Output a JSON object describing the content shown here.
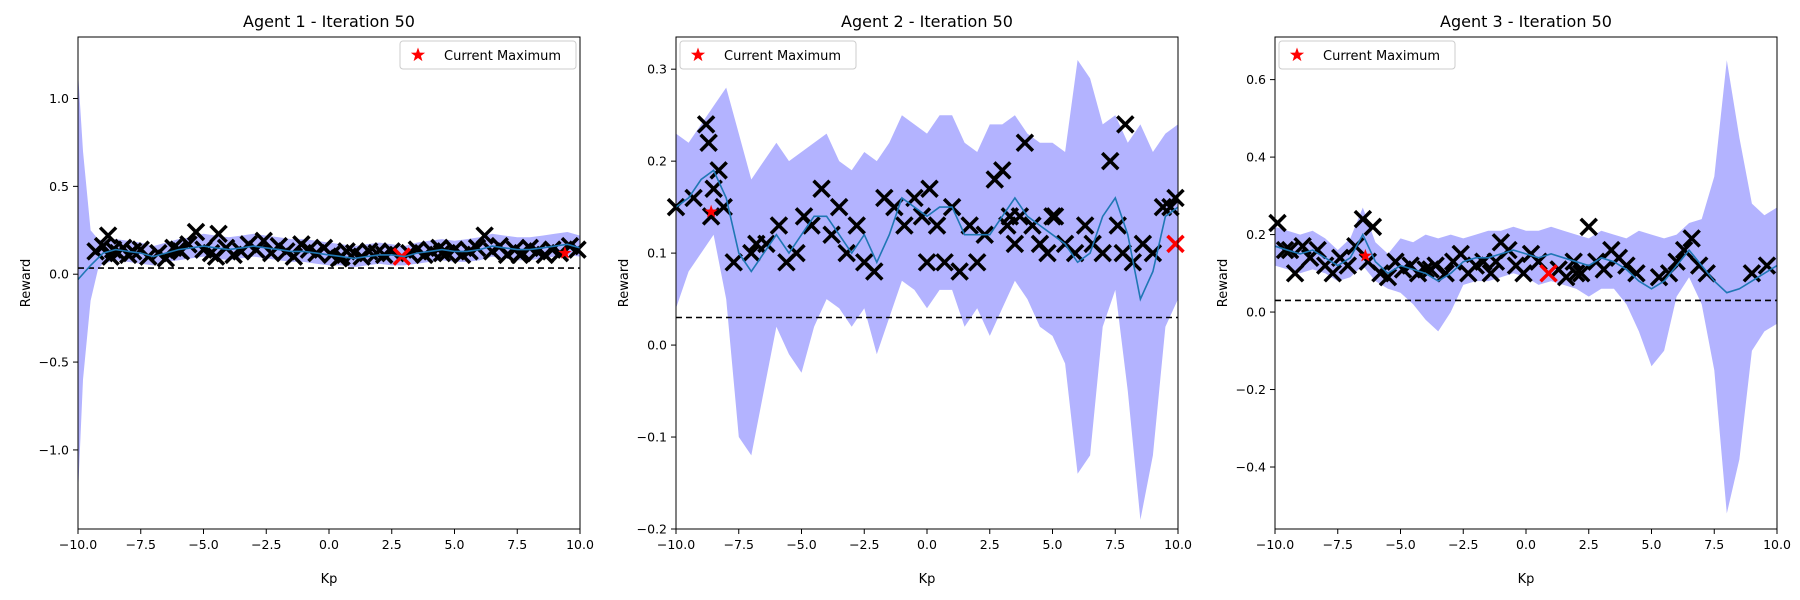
{
  "colors": {
    "band": "#b3b3ff",
    "mean_line": "#1f77b4",
    "sample_marker": "#000000",
    "best_marker": "#ff0000",
    "star": "#ff0000",
    "threshold": "#000000",
    "frame": "#000000"
  },
  "chart_data": [
    {
      "type": "line",
      "title": "Agent 1 - Iteration 50",
      "xlabel": "Kp",
      "ylabel": "Reward",
      "xlim": [
        -10,
        10
      ],
      "ylim": [
        -1.45,
        1.35
      ],
      "xticks": [
        -10,
        -7.5,
        -5,
        -2.5,
        0,
        2.5,
        5,
        7.5,
        10
      ],
      "xtick_labels": [
        "−10.0",
        "−7.5",
        "−5.0",
        "−2.5",
        "0.0",
        "2.5",
        "5.0",
        "7.5",
        "10.0"
      ],
      "yticks": [
        -1.0,
        -0.5,
        0.0,
        0.5,
        1.0
      ],
      "ytick_labels": [
        "−1.0",
        "−0.5",
        "0.0",
        "0.5",
        "1.0"
      ],
      "legend": {
        "label": "Current Maximum",
        "position": "top-right"
      },
      "threshold": 0.035,
      "mean": {
        "x": [
          -10,
          -9.5,
          -9,
          -8.5,
          -8,
          -7.5,
          -7,
          -6.5,
          -6,
          -5.5,
          -5,
          -4.5,
          -4,
          -3.5,
          -3,
          -2.5,
          -2,
          -1.5,
          -1,
          -0.5,
          0,
          0.5,
          1,
          1.5,
          2,
          2.5,
          3,
          3.5,
          4,
          4.5,
          5,
          5.5,
          6,
          6.5,
          7,
          7.5,
          8,
          8.5,
          9,
          9.5,
          10
        ],
        "y": [
          -0.03,
          0.05,
          0.12,
          0.14,
          0.13,
          0.12,
          0.1,
          0.12,
          0.14,
          0.15,
          0.16,
          0.15,
          0.14,
          0.15,
          0.16,
          0.15,
          0.14,
          0.13,
          0.13,
          0.12,
          0.11,
          0.1,
          0.09,
          0.1,
          0.11,
          0.11,
          0.1,
          0.12,
          0.13,
          0.14,
          0.13,
          0.13,
          0.14,
          0.16,
          0.15,
          0.14,
          0.14,
          0.15,
          0.16,
          0.17,
          0.15
        ]
      },
      "band": {
        "x": [
          -10,
          -9.8,
          -9.5,
          -9.2,
          -9,
          -8.5,
          -8,
          -7.5,
          -7,
          -6.5,
          -6,
          -5.5,
          -5,
          -4.5,
          -4,
          -3.5,
          -3,
          -2.5,
          -2,
          -1.5,
          -1,
          -0.5,
          0,
          0.5,
          1,
          1.5,
          2,
          2.5,
          3,
          3.5,
          4,
          4.5,
          5,
          5.5,
          6,
          6.5,
          7,
          7.5,
          8,
          8.5,
          9,
          9.5,
          10
        ],
        "lower": [
          -1.25,
          -0.6,
          -0.15,
          0.03,
          0.06,
          0.08,
          0.07,
          0.06,
          0.05,
          0.07,
          0.08,
          0.09,
          0.1,
          0.09,
          0.08,
          0.09,
          0.1,
          0.09,
          0.08,
          0.07,
          0.07,
          0.06,
          0.05,
          0.05,
          0.04,
          0.05,
          0.06,
          0.05,
          0.05,
          0.06,
          0.07,
          0.08,
          0.07,
          0.07,
          0.08,
          0.1,
          0.09,
          0.08,
          0.08,
          0.09,
          0.1,
          0.11,
          0.1
        ],
        "upper": [
          1.15,
          0.7,
          0.25,
          0.2,
          0.19,
          0.2,
          0.19,
          0.18,
          0.16,
          0.18,
          0.2,
          0.21,
          0.23,
          0.22,
          0.21,
          0.22,
          0.23,
          0.22,
          0.21,
          0.2,
          0.2,
          0.19,
          0.18,
          0.17,
          0.16,
          0.17,
          0.18,
          0.17,
          0.16,
          0.18,
          0.19,
          0.2,
          0.19,
          0.2,
          0.21,
          0.23,
          0.22,
          0.21,
          0.21,
          0.22,
          0.23,
          0.24,
          0.22
        ]
      },
      "samples": {
        "x": [
          -9.3,
          -9.0,
          -8.8,
          -8.6,
          -8.4,
          -8.2,
          -8.0,
          -7.8,
          -7.5,
          -7.2,
          -6.8,
          -6.5,
          -6.2,
          -5.9,
          -5.6,
          -5.3,
          -5.0,
          -4.7,
          -4.4,
          -4.1,
          -3.8,
          -3.5,
          -3.2,
          -2.9,
          -2.6,
          -2.3,
          -2.0,
          -1.7,
          -1.4,
          -1.1,
          -0.8,
          -0.5,
          -0.2,
          0.1,
          0.4,
          0.7,
          1.0,
          1.3,
          1.6,
          1.9,
          2.2,
          2.5,
          3.2,
          3.5,
          3.8,
          4.1,
          4.4,
          4.7,
          5.0,
          5.3,
          5.6,
          5.9,
          6.2,
          6.5,
          6.8,
          7.1,
          7.4,
          7.7,
          8.0,
          8.3,
          8.6,
          8.9,
          9.2,
          9.6,
          9.9,
          -8.7,
          -6.0,
          -4.5,
          0.5,
          4.5,
          7.6
        ],
        "y": [
          0.13,
          0.16,
          0.22,
          0.14,
          0.12,
          0.15,
          0.11,
          0.13,
          0.14,
          0.1,
          0.12,
          0.09,
          0.15,
          0.13,
          0.17,
          0.24,
          0.14,
          0.12,
          0.23,
          0.15,
          0.11,
          0.13,
          0.17,
          0.14,
          0.19,
          0.12,
          0.16,
          0.13,
          0.1,
          0.17,
          0.14,
          0.12,
          0.15,
          0.11,
          0.09,
          0.13,
          0.12,
          0.1,
          0.13,
          0.12,
          0.11,
          0.13,
          0.12,
          0.14,
          0.11,
          0.13,
          0.15,
          0.12,
          0.14,
          0.11,
          0.13,
          0.15,
          0.22,
          0.13,
          0.16,
          0.11,
          0.14,
          0.12,
          0.15,
          0.13,
          0.11,
          0.14,
          0.12,
          0.16,
          0.14,
          0.1,
          0.14,
          0.1,
          0.1,
          0.12,
          0.11
        ]
      },
      "best_samples": {
        "x": [
          2.9
        ],
        "y": [
          0.1
        ]
      },
      "current_max": {
        "x": 9.4,
        "y": 0.12
      }
    },
    {
      "type": "line",
      "title": "Agent 2 - Iteration 50",
      "xlabel": "Kp",
      "ylabel": "Reward",
      "xlim": [
        -10,
        10
      ],
      "ylim": [
        -0.2,
        0.335
      ],
      "xticks": [
        -10,
        -7.5,
        -5,
        -2.5,
        0,
        2.5,
        5,
        7.5,
        10
      ],
      "xtick_labels": [
        "−10.0",
        "−7.5",
        "−5.0",
        "−2.5",
        "0.0",
        "2.5",
        "5.0",
        "7.5",
        "10.0"
      ],
      "yticks": [
        -0.2,
        -0.1,
        0.0,
        0.1,
        0.2,
        0.3
      ],
      "ytick_labels": [
        "−0.2",
        "−0.1",
        "0.0",
        "0.1",
        "0.2",
        "0.3"
      ],
      "legend": {
        "label": "Current Maximum",
        "position": "top-left"
      },
      "threshold": 0.03,
      "mean": {
        "x": [
          -10,
          -9.5,
          -9,
          -8.5,
          -8,
          -7.5,
          -7,
          -6.5,
          -6,
          -5.5,
          -5,
          -4.5,
          -4,
          -3.5,
          -3,
          -2.5,
          -2,
          -1.5,
          -1,
          -0.5,
          0,
          0.5,
          1,
          1.5,
          2,
          2.5,
          3,
          3.5,
          4,
          4.5,
          5,
          5.5,
          6,
          6.5,
          7,
          7.5,
          8,
          8.5,
          9,
          9.5,
          10
        ],
        "y": [
          0.15,
          0.16,
          0.18,
          0.19,
          0.16,
          0.1,
          0.08,
          0.1,
          0.12,
          0.1,
          0.12,
          0.14,
          0.14,
          0.12,
          0.1,
          0.12,
          0.09,
          0.12,
          0.16,
          0.15,
          0.14,
          0.15,
          0.15,
          0.12,
          0.12,
          0.12,
          0.14,
          0.16,
          0.14,
          0.13,
          0.12,
          0.11,
          0.09,
          0.1,
          0.14,
          0.16,
          0.12,
          0.05,
          0.08,
          0.14,
          0.15
        ]
      },
      "band": {
        "x": [
          -10,
          -9.5,
          -9,
          -8.5,
          -8,
          -7.5,
          -7,
          -6.5,
          -6,
          -5.5,
          -5,
          -4.5,
          -4,
          -3.5,
          -3,
          -2.5,
          -2,
          -1.5,
          -1,
          -0.5,
          0,
          0.5,
          1,
          1.5,
          2,
          2.5,
          3,
          3.5,
          4,
          4.5,
          5,
          5.5,
          6,
          6.5,
          7,
          7.5,
          8,
          8.5,
          9,
          9.5,
          10
        ],
        "lower": [
          0.04,
          0.08,
          0.1,
          0.12,
          0.05,
          -0.1,
          -0.12,
          -0.05,
          0.02,
          -0.01,
          -0.03,
          0.02,
          0.05,
          0.04,
          0.02,
          0.04,
          -0.01,
          0.03,
          0.07,
          0.06,
          0.04,
          0.06,
          0.06,
          0.02,
          0.04,
          0.01,
          0.04,
          0.07,
          0.05,
          0.02,
          0.01,
          -0.02,
          -0.14,
          -0.12,
          0.02,
          0.06,
          -0.05,
          -0.19,
          -0.12,
          0.02,
          0.05
        ],
        "upper": [
          0.23,
          0.22,
          0.24,
          0.26,
          0.28,
          0.23,
          0.18,
          0.2,
          0.22,
          0.2,
          0.21,
          0.22,
          0.23,
          0.2,
          0.19,
          0.21,
          0.2,
          0.22,
          0.25,
          0.24,
          0.23,
          0.25,
          0.25,
          0.22,
          0.21,
          0.24,
          0.24,
          0.25,
          0.23,
          0.22,
          0.22,
          0.21,
          0.31,
          0.29,
          0.24,
          0.25,
          0.22,
          0.24,
          0.21,
          0.23,
          0.24
        ]
      },
      "samples": {
        "x": [
          -10.0,
          -9.3,
          -8.8,
          -8.7,
          -8.5,
          -8.3,
          -8.1,
          -7.7,
          -7.0,
          -6.4,
          -5.9,
          -5.6,
          -5.2,
          -4.9,
          -4.6,
          -4.2,
          -3.8,
          -3.5,
          -3.2,
          -2.8,
          -2.5,
          -2.1,
          -1.7,
          -1.3,
          -0.9,
          -0.5,
          -0.2,
          0.1,
          0.4,
          0.7,
          1.0,
          1.3,
          1.7,
          2.0,
          2.3,
          2.7,
          3.0,
          3.3,
          3.5,
          3.7,
          3.9,
          4.2,
          4.5,
          4.8,
          5.1,
          5.5,
          5.9,
          6.3,
          6.6,
          7.0,
          7.3,
          7.6,
          7.9,
          8.2,
          8.6,
          9.0,
          9.4,
          9.7,
          9.9,
          -8.6,
          0.0,
          5.0,
          7.8,
          3.2,
          -6.8
        ],
        "y": [
          0.15,
          0.16,
          0.24,
          0.22,
          0.17,
          0.19,
          0.15,
          0.09,
          0.1,
          0.11,
          0.13,
          0.09,
          0.1,
          0.14,
          0.13,
          0.17,
          0.12,
          0.15,
          0.1,
          0.13,
          0.09,
          0.08,
          0.16,
          0.15,
          0.13,
          0.16,
          0.14,
          0.17,
          0.13,
          0.09,
          0.15,
          0.08,
          0.13,
          0.09,
          0.12,
          0.18,
          0.19,
          0.14,
          0.11,
          0.14,
          0.22,
          0.13,
          0.11,
          0.1,
          0.14,
          0.11,
          0.1,
          0.13,
          0.11,
          0.1,
          0.2,
          0.13,
          0.24,
          0.09,
          0.11,
          0.1,
          0.15,
          0.15,
          0.16,
          0.14,
          0.09,
          0.14,
          0.1,
          0.13,
          0.11
        ]
      },
      "best_samples": {
        "x": [
          9.9
        ],
        "y": [
          0.11
        ]
      },
      "current_max": {
        "x": -8.6,
        "y": 0.145
      }
    },
    {
      "type": "line",
      "title": "Agent 3 - Iteration 50",
      "xlabel": "Kp",
      "ylabel": "Reward",
      "xlim": [
        -10,
        10
      ],
      "ylim": [
        -0.56,
        0.71
      ],
      "xticks": [
        -10,
        -7.5,
        -5,
        -2.5,
        0,
        2.5,
        5,
        7.5,
        10
      ],
      "xtick_labels": [
        "−10.0",
        "−7.5",
        "−5.0",
        "−2.5",
        "0.0",
        "2.5",
        "5.0",
        "7.5",
        "10.0"
      ],
      "yticks": [
        -0.4,
        -0.2,
        0.0,
        0.2,
        0.4,
        0.6
      ],
      "ytick_labels": [
        "−0.4",
        "−0.2",
        "0.0",
        "0.2",
        "0.4",
        "0.6"
      ],
      "legend": {
        "label": "Current Maximum",
        "position": "top-left"
      },
      "threshold": 0.03,
      "mean": {
        "x": [
          -10,
          -9.5,
          -9,
          -8.5,
          -8,
          -7.5,
          -7,
          -6.5,
          -6,
          -5.5,
          -5,
          -4.5,
          -4,
          -3.5,
          -3,
          -2.5,
          -2,
          -1.5,
          -1,
          -0.5,
          0,
          0.5,
          1,
          1.5,
          2,
          2.5,
          3,
          3.5,
          4,
          4.5,
          5,
          5.5,
          6,
          6.5,
          7,
          7.5,
          8,
          8.5,
          9,
          9.5,
          10
        ],
        "y": [
          0.17,
          0.16,
          0.15,
          0.16,
          0.14,
          0.12,
          0.14,
          0.2,
          0.13,
          0.1,
          0.12,
          0.11,
          0.1,
          0.08,
          0.1,
          0.13,
          0.14,
          0.14,
          0.15,
          0.16,
          0.15,
          0.14,
          0.15,
          0.14,
          0.13,
          0.12,
          0.14,
          0.13,
          0.11,
          0.08,
          0.06,
          0.08,
          0.12,
          0.16,
          0.12,
          0.08,
          0.05,
          0.06,
          0.08,
          0.1,
          0.12
        ]
      },
      "band": {
        "x": [
          -10,
          -9.5,
          -9,
          -8.5,
          -8,
          -7.5,
          -7,
          -6.5,
          -6,
          -5.5,
          -5,
          -4.5,
          -4,
          -3.5,
          -3,
          -2.5,
          -2,
          -1.5,
          -1,
          -0.5,
          0,
          0.5,
          1,
          1.5,
          2,
          2.5,
          3,
          3.5,
          4,
          4.5,
          5,
          5.5,
          6,
          6.5,
          7,
          7.5,
          8,
          8.5,
          9,
          9.5,
          10
        ],
        "lower": [
          0.12,
          0.11,
          0.1,
          0.11,
          0.1,
          0.08,
          0.09,
          0.12,
          0.08,
          0.06,
          0.05,
          0.02,
          -0.02,
          -0.05,
          0.0,
          0.07,
          0.08,
          0.08,
          0.09,
          0.1,
          0.09,
          0.07,
          0.08,
          0.07,
          0.06,
          0.04,
          0.06,
          0.06,
          0.02,
          -0.05,
          -0.14,
          -0.1,
          0.04,
          0.09,
          0.02,
          -0.15,
          -0.52,
          -0.38,
          -0.1,
          -0.05,
          -0.03
        ],
        "upper": [
          0.22,
          0.21,
          0.2,
          0.21,
          0.19,
          0.16,
          0.19,
          0.27,
          0.18,
          0.15,
          0.19,
          0.18,
          0.2,
          0.19,
          0.2,
          0.19,
          0.2,
          0.21,
          0.21,
          0.22,
          0.21,
          0.21,
          0.22,
          0.21,
          0.2,
          0.19,
          0.21,
          0.2,
          0.19,
          0.21,
          0.2,
          0.19,
          0.2,
          0.23,
          0.24,
          0.35,
          0.65,
          0.45,
          0.28,
          0.25,
          0.27
        ]
      },
      "samples": {
        "x": [
          -9.9,
          -9.6,
          -9.2,
          -8.9,
          -8.6,
          -8.3,
          -8.0,
          -7.7,
          -7.4,
          -7.1,
          -6.8,
          -6.5,
          -6.1,
          -5.8,
          -5.5,
          -5.2,
          -4.9,
          -4.6,
          -4.3,
          -4.0,
          -3.6,
          -3.2,
          -2.9,
          -2.6,
          -2.3,
          -2.0,
          -1.7,
          -1.4,
          -1.0,
          -0.7,
          -0.4,
          -0.1,
          0.2,
          0.5,
          1.3,
          1.6,
          1.9,
          2.2,
          2.5,
          2.8,
          3.1,
          3.4,
          3.7,
          4.0,
          4.4,
          5.3,
          5.7,
          6.0,
          6.3,
          6.6,
          6.9,
          7.2,
          9.0,
          9.6,
          -9.4,
          -6.3,
          -3.8,
          -1.2,
          2.0
        ],
        "y": [
          0.23,
          0.16,
          0.1,
          0.17,
          0.14,
          0.16,
          0.12,
          0.1,
          0.14,
          0.12,
          0.17,
          0.24,
          0.22,
          0.1,
          0.09,
          0.13,
          0.11,
          0.12,
          0.1,
          0.11,
          0.12,
          0.1,
          0.13,
          0.15,
          0.1,
          0.12,
          0.13,
          0.1,
          0.18,
          0.16,
          0.12,
          0.1,
          0.15,
          0.13,
          0.11,
          0.09,
          0.13,
          0.1,
          0.22,
          0.13,
          0.11,
          0.16,
          0.14,
          0.12,
          0.1,
          0.09,
          0.1,
          0.13,
          0.16,
          0.19,
          0.12,
          0.1,
          0.1,
          0.12,
          0.16,
          0.13,
          0.11,
          0.13,
          0.1
        ]
      },
      "best_samples": {
        "x": [
          0.9
        ],
        "y": [
          0.1
        ]
      },
      "current_max": {
        "x": -6.4,
        "y": 0.145
      }
    }
  ]
}
